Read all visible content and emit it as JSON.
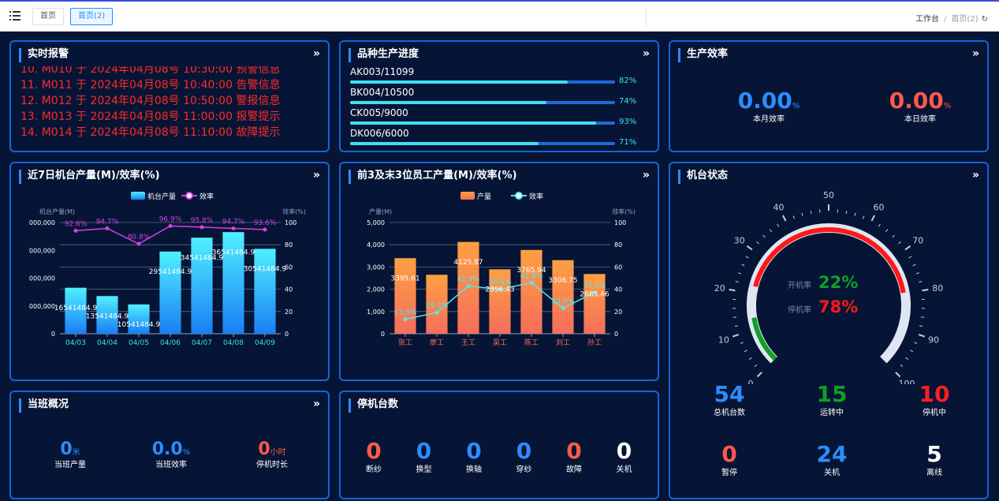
{
  "topbar": {
    "tabs": [
      "首页",
      "首页(2)"
    ],
    "breadcrumb": [
      "工作台",
      "首页(2)"
    ]
  },
  "alarm": {
    "title": "实时报警",
    "items": [
      "10. M010 于 2024年04月08号 10:30:00 预警信息",
      "11. M011 于 2024年04月08号 10:40:00 告警信息",
      "12. M012 于 2024年04月08号 10:50:00 警报信息",
      "13. M013 于 2024年04月08号 11:00:00 报警提示",
      "14. M014 于 2024年04月08号 11:10:00 故障提示"
    ]
  },
  "progress": {
    "title": "品种生产进度",
    "items": [
      {
        "label": "AK003/11099",
        "pct": "82%",
        "value": 0.82
      },
      {
        "label": "BK004/10500",
        "pct": "74%",
        "value": 0.74
      },
      {
        "label": "CK005/9000",
        "pct": "93%",
        "value": 0.93
      },
      {
        "label": "DK006/6000",
        "pct": "71%",
        "value": 0.71
      }
    ]
  },
  "efficiency": {
    "title": "生产效率",
    "month_value": "0.00",
    "month_unit": "%",
    "month_label": "本月效率",
    "day_value": "0.00",
    "day_unit": "%",
    "day_label": "本日效率"
  },
  "machine_chart": {
    "title": "近7日机台产量(M)/效率(%)"
  },
  "worker_chart": {
    "title": "前3及末3位员工产量(M)/效率(%)"
  },
  "machine_status": {
    "title": "机台状态",
    "on_label": "开机率",
    "on_value": "22%",
    "on_rate": 0.22,
    "off_label": "停机率",
    "off_value": "78%",
    "off_rate": 0.78,
    "gauge_ticks": [
      "0",
      "10",
      "20",
      "30",
      "40",
      "50",
      "60",
      "70",
      "80",
      "90",
      "100"
    ],
    "stats": [
      {
        "value": "54",
        "label": "总机台数",
        "color": "#2d8cff"
      },
      {
        "value": "15",
        "label": "运转中",
        "color": "#0fa024"
      },
      {
        "value": "10",
        "label": "停机中",
        "color": "#ff1f1f"
      },
      {
        "value": "0",
        "label": "暂停",
        "color": "#ff5a48"
      },
      {
        "value": "24",
        "label": "关机",
        "color": "#2d8cff"
      },
      {
        "value": "5",
        "label": "离线",
        "color": "#ffffff"
      }
    ]
  },
  "shift": {
    "title": "当班概况",
    "items": [
      {
        "value": "0",
        "unit": "米",
        "label": "当班产量"
      },
      {
        "value": "0.0",
        "unit": "%",
        "label": "当班效率"
      },
      {
        "value": "0",
        "unit": "小时",
        "label": "停机时长"
      }
    ]
  },
  "stopped": {
    "title": "停机台数",
    "items": [
      {
        "value": "0",
        "label": "断纱",
        "color": "#ff5a48"
      },
      {
        "value": "0",
        "label": "换型",
        "color": "#2d8cff"
      },
      {
        "value": "0",
        "label": "换轴",
        "color": "#2d8cff"
      },
      {
        "value": "0",
        "label": "穿纱",
        "color": "#2d8cff"
      },
      {
        "value": "0",
        "label": "故障",
        "color": "#ff5a48"
      },
      {
        "value": "0",
        "label": "关机",
        "color": "#ffffff"
      }
    ]
  },
  "chart_data": [
    {
      "type": "bar",
      "title": "近7日机台产量(M)/效率(%)",
      "categories": [
        "04/03",
        "04/04",
        "04/05",
        "04/06",
        "04/07",
        "04/08",
        "04/09"
      ],
      "series": [
        {
          "name": "机台产量",
          "type": "bar",
          "values": [
            16541484.9,
            13541484.9,
            10541484.9,
            29541484.9,
            34541484.9,
            36541484.9,
            30541484.9
          ]
        },
        {
          "name": "效率",
          "type": "line",
          "values": [
            92.6,
            94.7,
            80.8,
            96.9,
            95.8,
            94.7,
            93.6
          ],
          "labels": [
            "92.6%",
            "94.7%",
            "80.8%",
            "96.9%",
            "95.8%",
            "94.7%",
            "93.6%"
          ]
        }
      ],
      "bar_labels": [
        "16541484.9",
        "13541484.9",
        "10541484.9",
        "29541484.9",
        "34541484.9",
        "36541484.9",
        "30541484.9"
      ],
      "ylabel": "机台产量(M)",
      "y2label": "效率(%)",
      "ylim": [
        0,
        40000000
      ],
      "y_ticks": [
        "0",
        "000,000",
        "000,000",
        "000,000",
        "000,000"
      ],
      "y2lim": [
        0,
        100
      ],
      "y2_ticks": [
        "0",
        "20",
        "40",
        "60",
        "80",
        "100"
      ],
      "legend_position": "top-center",
      "colors": {
        "bar_top": "#4ff0ff",
        "bar_bottom": "#1a7ef5",
        "line": "#d63fe5"
      }
    },
    {
      "type": "bar",
      "title": "前3及末3位员工产量(M)/效率(%)",
      "categories": [
        "张工",
        "廖工",
        "王工",
        "吴工",
        "陈工",
        "刘工",
        "孙工"
      ],
      "series": [
        {
          "name": "产量",
          "type": "bar",
          "values": [
            3395.61,
            2650,
            4125.87,
            2896.43,
            3765.94,
            3306.75,
            2685.46
          ]
        },
        {
          "name": "效率",
          "type": "line",
          "values": [
            13.0,
            19.0,
            42.9,
            39.9,
            45.9,
            23.0,
            37.0
          ],
          "labels": [
            "13.0%",
            "19.0%",
            "42.9%",
            "39.9%",
            "45.9%",
            "23.0%",
            "37.0%"
          ]
        }
      ],
      "bar_labels": [
        "3395.61",
        "",
        "4125.87",
        "2896.43",
        "3765.94",
        "3306.75",
        "2685.46"
      ],
      "ylabel": "产量(M)",
      "y2label": "效率(%)",
      "ylim": [
        0,
        5000
      ],
      "y_ticks": [
        "0",
        "1,000",
        "2,000",
        "3,000",
        "4,000",
        "5,000"
      ],
      "y2lim": [
        0,
        100
      ],
      "y2_ticks": [
        "0",
        "20",
        "40",
        "60",
        "80",
        "100"
      ],
      "legend_position": "top-center",
      "colors": {
        "bar_top": "#fda042",
        "bar_bottom": "#f56e5c",
        "line": "#58e6ef"
      }
    }
  ]
}
